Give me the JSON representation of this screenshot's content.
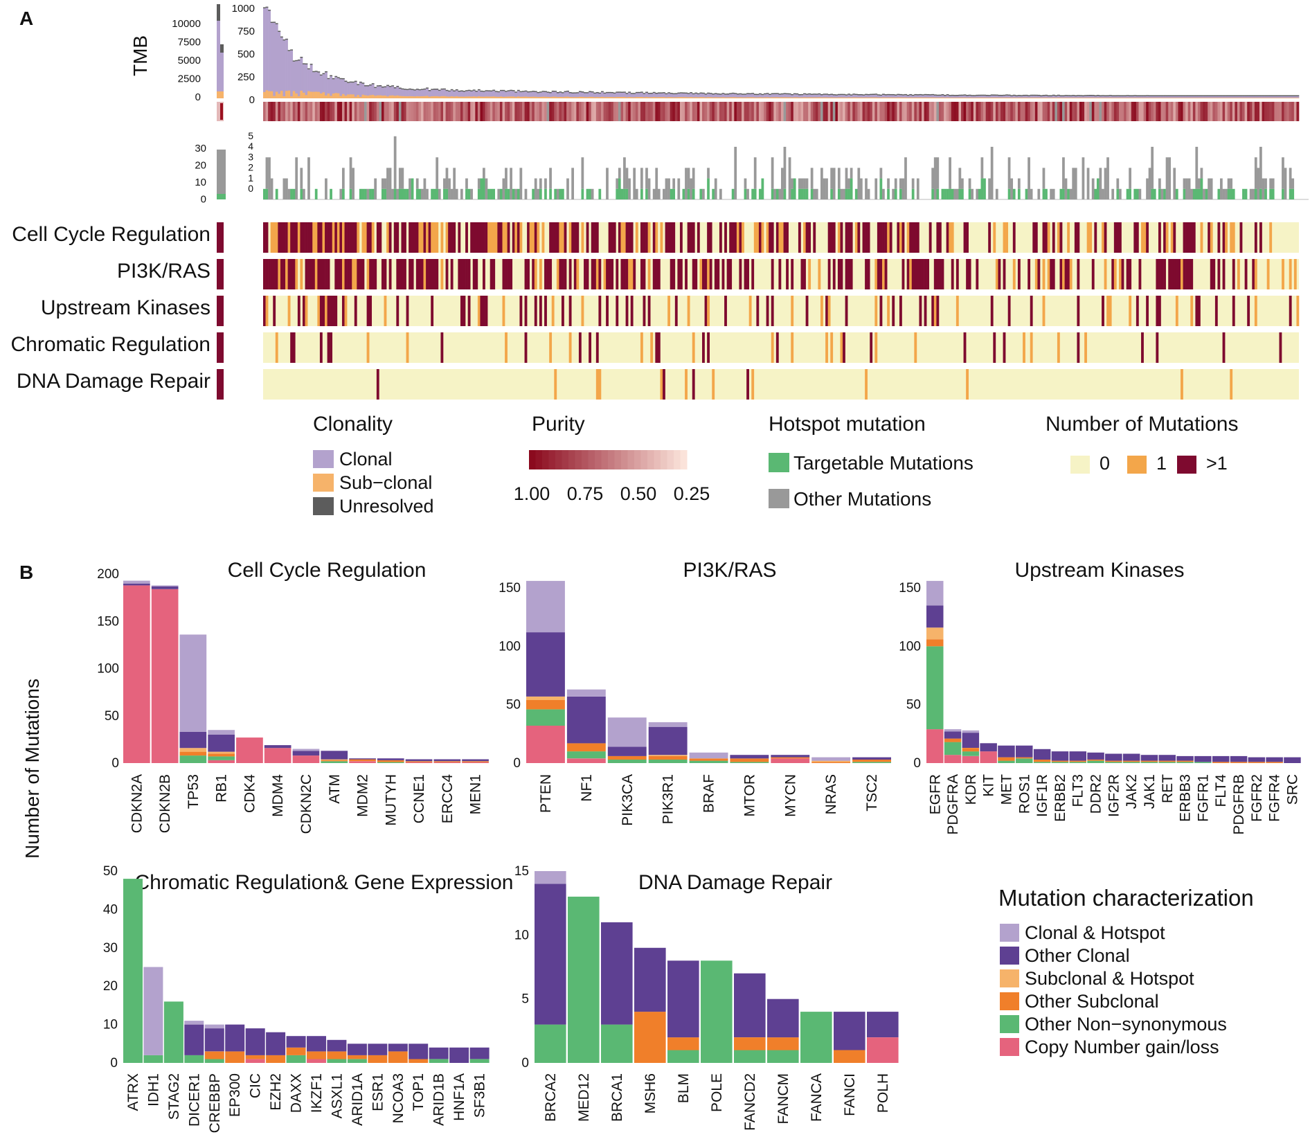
{
  "panel_labels": [
    "A",
    "B"
  ],
  "colors": {
    "clonal": "#b3a2cd",
    "subclonal": "#f6b36a",
    "unresolved": "#5c5c5c",
    "clonal_hotspot": "#b3a2cd",
    "other_clonal": "#5e4092",
    "subclonal_hotspot": "#f6b36a",
    "other_subclonal": "#f07f2a",
    "other_nonsyn": "#5ab873",
    "cn": "#e5637d",
    "targetable": "#5ab873",
    "other_mut": "#999999",
    "n0": "#f6f3c6",
    "n1": "#f3a64a",
    "n2": "#7e0a2f",
    "purity_high": "#8b0a1e",
    "purity_low": "#fbe3da"
  },
  "panelA": {
    "tmb_label": "TMB",
    "tmb_left_ticks": [
      "10000",
      "7500",
      "5000",
      "2500",
      "0"
    ],
    "tmb_right_ticks": [
      "1000",
      "750",
      "500",
      "250",
      "0"
    ],
    "hotspot_left_ticks": [
      "30",
      "20",
      "10",
      "0"
    ],
    "hotspot_right_ticks": [
      "5",
      "4",
      "3",
      "2",
      "1",
      "0"
    ],
    "pathways": [
      "Cell Cycle Regulation",
      "PI3K/RAS",
      "Upstream Kinases",
      "Chromatic Regulation",
      "DNA Damage Repair"
    ],
    "pathway_density": [
      [
        0.25,
        0.63
      ],
      [
        0.15,
        0.65
      ],
      [
        0.12,
        0.22
      ],
      [
        0.07,
        0.06
      ],
      [
        0.04,
        0.02
      ]
    ],
    "legends": {
      "clonality": {
        "title": "Clonality",
        "items": [
          "Clonal",
          "Sub−clonal",
          "Unresolved"
        ]
      },
      "purity": {
        "title": "Purity",
        "ticks": [
          "1.00",
          "0.75",
          "0.50",
          "0.25"
        ]
      },
      "hotspot": {
        "title": "Hotspot mutation",
        "items": [
          "Targetable Mutations",
          "Other Mutations"
        ]
      },
      "nmut": {
        "title": "Number of Mutations",
        "items": [
          "0",
          "1",
          ">1"
        ]
      }
    }
  },
  "panelB": {
    "ylabel": "Number of Mutations",
    "legend": {
      "title": "Mutation characterization",
      "items": [
        "Clonal & Hotspot",
        "Other Clonal",
        "Subclonal & Hotspot",
        "Other Subclonal",
        "Other Non−synonymous",
        "Copy Number gain/loss"
      ]
    }
  },
  "chart_data": [
    {
      "type": "bar",
      "title": "Cell Cycle Regulation",
      "ylim": [
        0,
        200
      ],
      "yticks": [
        0,
        50,
        100,
        150,
        200
      ],
      "categories": [
        "CDKN2A",
        "CDKN2B",
        "TP53",
        "RB1",
        "CDK4",
        "MDM4",
        "CDKN2C",
        "ATM",
        "MDM2",
        "MUTYH",
        "CCNE1",
        "ERCC4",
        "MEN1"
      ],
      "series": [
        {
          "name": "Copy Number gain/loss",
          "values": [
            188,
            184,
            0,
            3,
            27,
            16,
            8,
            0,
            2,
            0,
            1,
            1,
            1
          ]
        },
        {
          "name": "Other Non−synonymous",
          "values": [
            0,
            0,
            8,
            4,
            0,
            0,
            0,
            2,
            0,
            1,
            0,
            0,
            0
          ]
        },
        {
          "name": "Other Subclonal",
          "values": [
            0,
            0,
            4,
            3,
            0,
            0,
            0,
            1,
            2,
            2,
            1,
            1,
            1
          ]
        },
        {
          "name": "Subclonal & Hotspot",
          "values": [
            0,
            0,
            4,
            2,
            0,
            0,
            0,
            1,
            0,
            0,
            0,
            0,
            0
          ]
        },
        {
          "name": "Other Clonal",
          "values": [
            2,
            3,
            17,
            18,
            0,
            3,
            5,
            9,
            1,
            2,
            2,
            2,
            2
          ]
        },
        {
          "name": "Clonal & Hotspot",
          "values": [
            3,
            1,
            103,
            5,
            0,
            0,
            2,
            0,
            0,
            0,
            0,
            0,
            0
          ]
        }
      ]
    },
    {
      "type": "bar",
      "title": "PI3K/RAS",
      "ylim": [
        0,
        150
      ],
      "yticks": [
        0,
        50,
        100,
        150
      ],
      "categories": [
        "PTEN",
        "NF1",
        "PIK3CA",
        "PIK3R1",
        "BRAF",
        "MTOR",
        "MYCN",
        "NRAS",
        "TSC2"
      ],
      "series": [
        {
          "name": "Copy Number gain/loss",
          "values": [
            32,
            4,
            0,
            0,
            0,
            0,
            4,
            0,
            0
          ]
        },
        {
          "name": "Other Non−synonymous",
          "values": [
            14,
            6,
            3,
            3,
            2,
            1,
            0,
            0,
            1
          ]
        },
        {
          "name": "Other Subclonal",
          "values": [
            8,
            7,
            3,
            3,
            2,
            3,
            1,
            1,
            2
          ]
        },
        {
          "name": "Subclonal & Hotspot",
          "values": [
            3,
            0,
            0,
            1,
            0,
            0,
            0,
            1,
            0
          ]
        },
        {
          "name": "Other Clonal",
          "values": [
            55,
            40,
            8,
            24,
            0,
            3,
            2,
            0,
            2
          ]
        },
        {
          "name": "Clonal & Hotspot",
          "values": [
            44,
            6,
            25,
            4,
            5,
            0,
            0,
            3,
            0
          ]
        }
      ]
    },
    {
      "type": "bar",
      "title": "Upstream Kinases",
      "ylim": [
        0,
        150
      ],
      "yticks": [
        0,
        50,
        100,
        150
      ],
      "categories": [
        "EGFR",
        "PDGFRA",
        "KDR",
        "KIT",
        "MET",
        "ROS1",
        "IGF1R",
        "ERBB2",
        "FLT3",
        "DDR2",
        "IGF2R",
        "JAK2",
        "JAK1",
        "RET",
        "ERBB3",
        "FGFR1",
        "FLT4",
        "PDGFRB",
        "FGFR2",
        "FGFR4",
        "SRC"
      ],
      "series": [
        {
          "name": "Copy Number gain/loss",
          "values": [
            29,
            7,
            6,
            10,
            0,
            0,
            0,
            0,
            0,
            0,
            0,
            0,
            0,
            0,
            0,
            0,
            0,
            0,
            0,
            0,
            0
          ]
        },
        {
          "name": "Other Non−synonymous",
          "values": [
            71,
            11,
            4,
            0,
            2,
            4,
            1,
            1,
            1,
            2,
            1,
            1,
            1,
            1,
            1,
            1,
            0,
            0,
            0,
            0,
            0
          ]
        },
        {
          "name": "Other Subclonal",
          "values": [
            6,
            3,
            3,
            0,
            3,
            1,
            2,
            1,
            1,
            1,
            1,
            1,
            1,
            1,
            1,
            0,
            1,
            1,
            1,
            1,
            0
          ]
        },
        {
          "name": "Subclonal & Hotspot",
          "values": [
            10,
            0,
            0,
            0,
            0,
            0,
            0,
            0,
            0,
            0,
            0,
            0,
            0,
            0,
            0,
            0,
            0,
            0,
            0,
            0,
            0
          ]
        },
        {
          "name": "Other Clonal",
          "values": [
            19,
            6,
            13,
            7,
            10,
            10,
            9,
            8,
            8,
            6,
            6,
            6,
            5,
            5,
            4,
            5,
            5,
            5,
            4,
            4,
            5
          ]
        },
        {
          "name": "Clonal & Hotspot",
          "values": [
            21,
            2,
            2,
            0,
            0,
            0,
            0,
            0,
            0,
            0,
            0,
            0,
            0,
            0,
            0,
            0,
            0,
            0,
            0,
            0,
            0
          ]
        }
      ]
    },
    {
      "type": "bar",
      "title": "Chromatic Regulation& Gene Expression",
      "ylim": [
        0,
        50
      ],
      "yticks": [
        0,
        10,
        20,
        30,
        40,
        50
      ],
      "categories": [
        "ATRX",
        "IDH1",
        "STAG2",
        "DICER1",
        "CREBBP",
        "EP300",
        "CIC",
        "EZH2",
        "DAXX",
        "IKZF1",
        "ASXL1",
        "ARID1A",
        "ESR1",
        "NCOA3",
        "TOP1",
        "ARID1B",
        "HNF1A",
        "SF3B1"
      ],
      "series": [
        {
          "name": "Copy Number gain/loss",
          "values": [
            0,
            0,
            0,
            0,
            0,
            0,
            1,
            0,
            0,
            1,
            0,
            0,
            0,
            0,
            0,
            0,
            0,
            0
          ]
        },
        {
          "name": "Other Non−synonymous",
          "values": [
            48,
            2,
            16,
            2,
            1,
            0,
            0,
            0,
            2,
            0,
            1,
            1,
            0,
            0,
            0,
            1,
            0,
            1
          ]
        },
        {
          "name": "Other Subclonal",
          "values": [
            0,
            0,
            0,
            0,
            2,
            3,
            1,
            2,
            2,
            2,
            2,
            1,
            2,
            3,
            1,
            0,
            0,
            0
          ]
        },
        {
          "name": "Subclonal & Hotspot",
          "values": [
            0,
            0,
            0,
            0,
            0,
            0,
            0,
            0,
            0,
            0,
            0,
            0,
            0,
            0,
            0,
            0,
            0,
            0
          ]
        },
        {
          "name": "Other Clonal",
          "values": [
            0,
            0,
            0,
            8,
            6,
            7,
            7,
            6,
            3,
            4,
            3,
            3,
            3,
            2,
            4,
            3,
            4,
            3
          ]
        },
        {
          "name": "Clonal & Hotspot",
          "values": [
            0,
            23,
            0,
            1,
            1,
            0,
            0,
            0,
            0,
            0,
            0,
            0,
            0,
            0,
            0,
            0,
            0,
            0
          ]
        }
      ]
    },
    {
      "type": "bar",
      "title": "DNA Damage Repair",
      "ylim": [
        0,
        15
      ],
      "yticks": [
        0,
        5,
        10,
        15
      ],
      "categories": [
        "BRCA2",
        "MED12",
        "BRCA1",
        "MSH6",
        "BLM",
        "POLE",
        "FANCD2",
        "FANCM",
        "FANCA",
        "FANCI",
        "POLH"
      ],
      "series": [
        {
          "name": "Copy Number gain/loss",
          "values": [
            0,
            0,
            0,
            0,
            0,
            0,
            0,
            0,
            0,
            0,
            2
          ]
        },
        {
          "name": "Other Non−synonymous",
          "values": [
            3,
            13,
            3,
            0,
            1,
            8,
            1,
            1,
            4,
            0,
            0
          ]
        },
        {
          "name": "Other Subclonal",
          "values": [
            0,
            0,
            0,
            4,
            1,
            0,
            1,
            1,
            0,
            1,
            0
          ]
        },
        {
          "name": "Subclonal & Hotspot",
          "values": [
            0,
            0,
            0,
            0,
            0,
            0,
            0,
            0,
            0,
            0,
            0
          ]
        },
        {
          "name": "Other Clonal",
          "values": [
            11,
            0,
            8,
            5,
            6,
            0,
            5,
            3,
            0,
            3,
            2
          ]
        },
        {
          "name": "Clonal & Hotspot",
          "values": [
            1,
            0,
            0,
            0,
            0,
            0,
            0,
            0,
            0,
            0,
            0
          ]
        }
      ]
    }
  ]
}
